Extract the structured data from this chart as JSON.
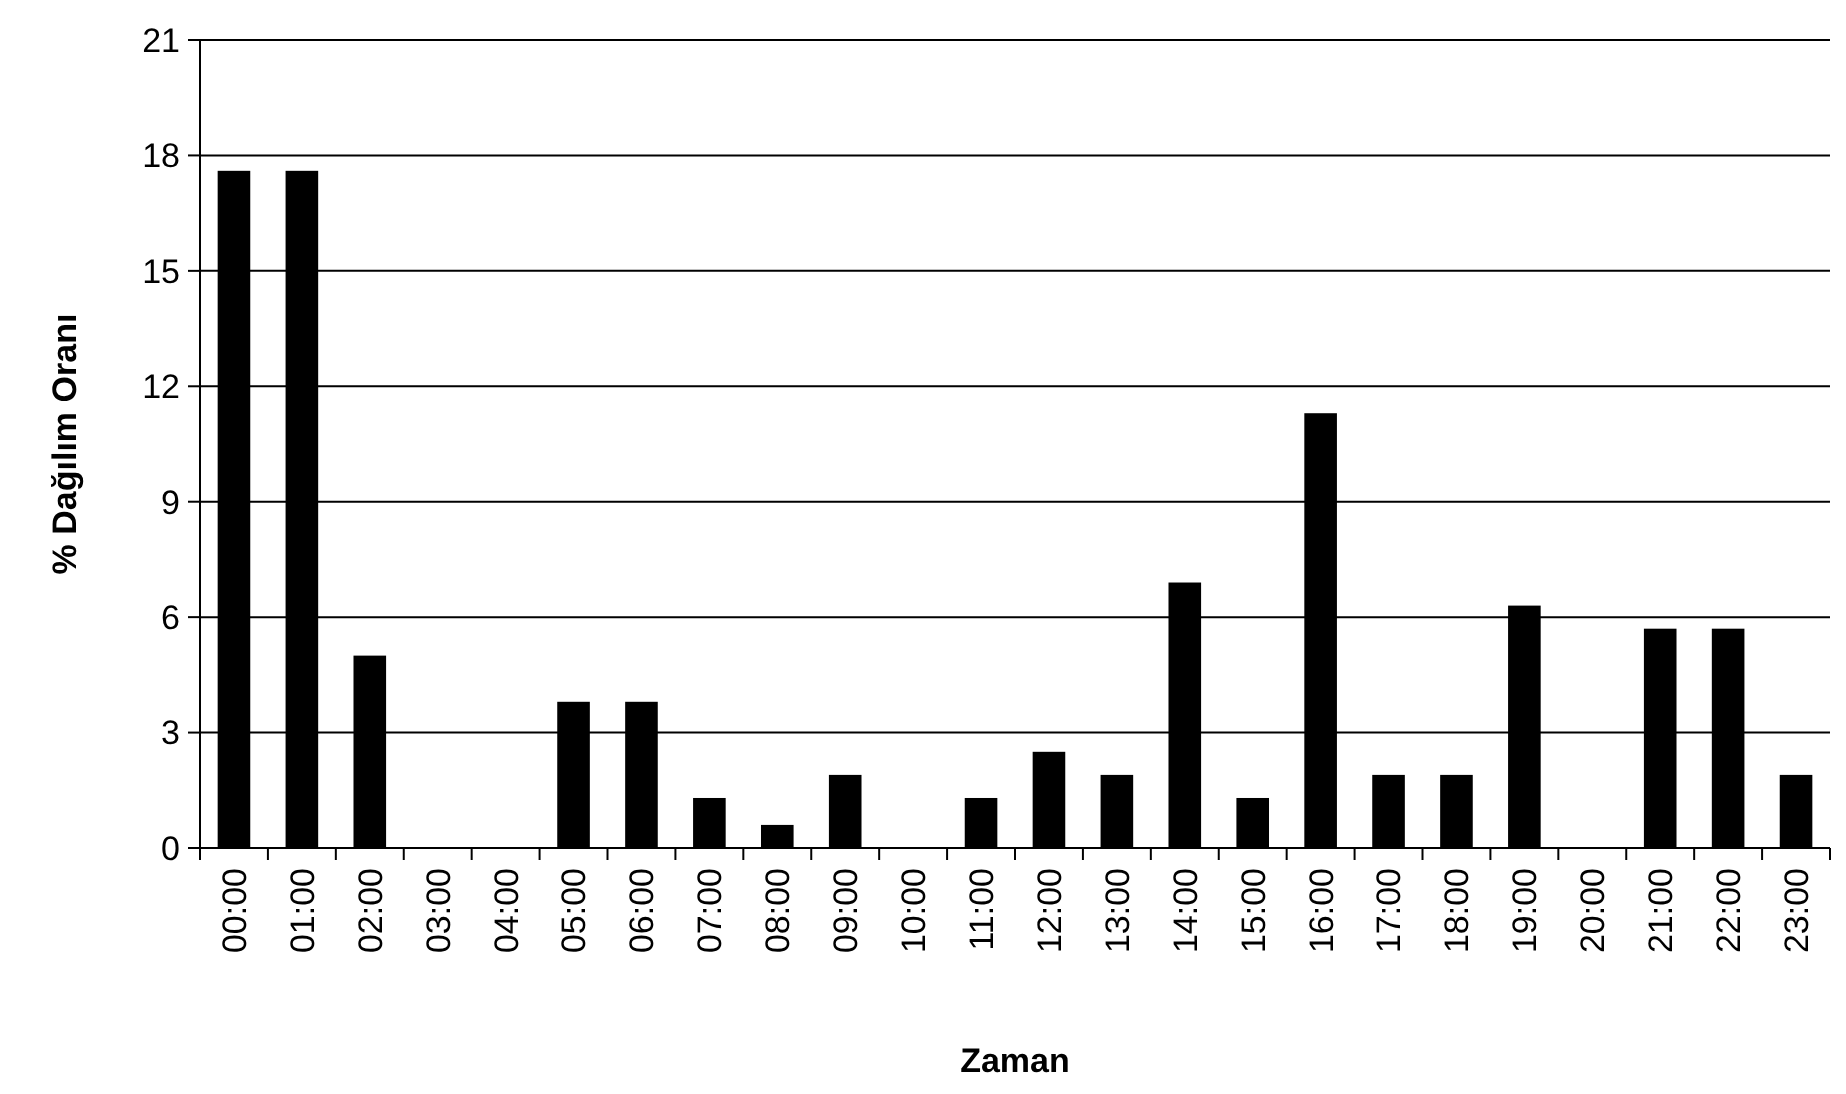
{
  "chart_data": {
    "type": "bar",
    "xlabel": "Zaman",
    "ylabel": "% Dağılım Oranı",
    "categories": [
      "00:00",
      "01:00",
      "02:00",
      "03:00",
      "04:00",
      "05:00",
      "06:00",
      "07:00",
      "08:00",
      "09:00",
      "10:00",
      "11:00",
      "12:00",
      "13:00",
      "14:00",
      "15:00",
      "16:00",
      "17:00",
      "18:00",
      "19:00",
      "20:00",
      "21:00",
      "22:00",
      "23:00"
    ],
    "values": [
      17.6,
      17.6,
      5.0,
      0,
      0,
      3.8,
      3.8,
      1.3,
      0.6,
      1.9,
      0,
      1.3,
      2.5,
      1.9,
      6.9,
      1.3,
      11.3,
      1.9,
      1.9,
      6.3,
      0,
      5.7,
      5.7,
      1.9
    ],
    "color": "#000000",
    "ylim": [
      0,
      21
    ],
    "yticks": [
      0,
      3,
      6,
      9,
      12,
      15,
      18,
      21
    ],
    "grid": "y"
  }
}
